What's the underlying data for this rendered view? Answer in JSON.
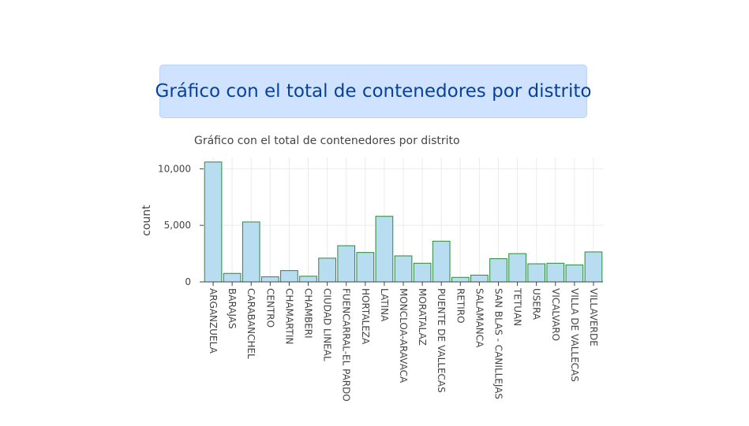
{
  "banner": {
    "title": "Gráfico con el total de contenedores por distrito"
  },
  "chart_data": {
    "type": "bar",
    "title": "Gráfico con el total de contenedores por distrito",
    "xlabel": "",
    "ylabel": "count",
    "ylim": [
      0,
      11000
    ],
    "yticks": [
      0,
      5000,
      10000
    ],
    "ytick_labels": [
      "0",
      "5,000",
      "10,000"
    ],
    "grid": true,
    "bar_fill": "#b8dcf0",
    "bar_stroke": "#2a8a3a",
    "categories": [
      "ARGANZUELA",
      "BARAJAS",
      "CARABANCHEL",
      "CENTRO",
      "CHAMARTIN",
      "CHAMBERI",
      "CIUDAD LINEAL",
      "FUENCARRAL-EL PARDO",
      "HORTALEZA",
      "LATINA",
      "MONCLOA-ARAVACA",
      "MORATALAZ",
      "PUENTE DE VALLECAS",
      "RETIRO",
      "SALAMANCA",
      "SAN BLAS - CANILLEJAS",
      "TETUAN",
      "USERA",
      "VICALVARO",
      "VILLA DE VALLECAS",
      "VILLAVERDE"
    ],
    "values": [
      10600,
      750,
      5300,
      450,
      1000,
      500,
      2100,
      3200,
      2600,
      5800,
      2300,
      1650,
      3600,
      400,
      600,
      2050,
      2500,
      1600,
      1650,
      1500,
      2650
    ]
  }
}
